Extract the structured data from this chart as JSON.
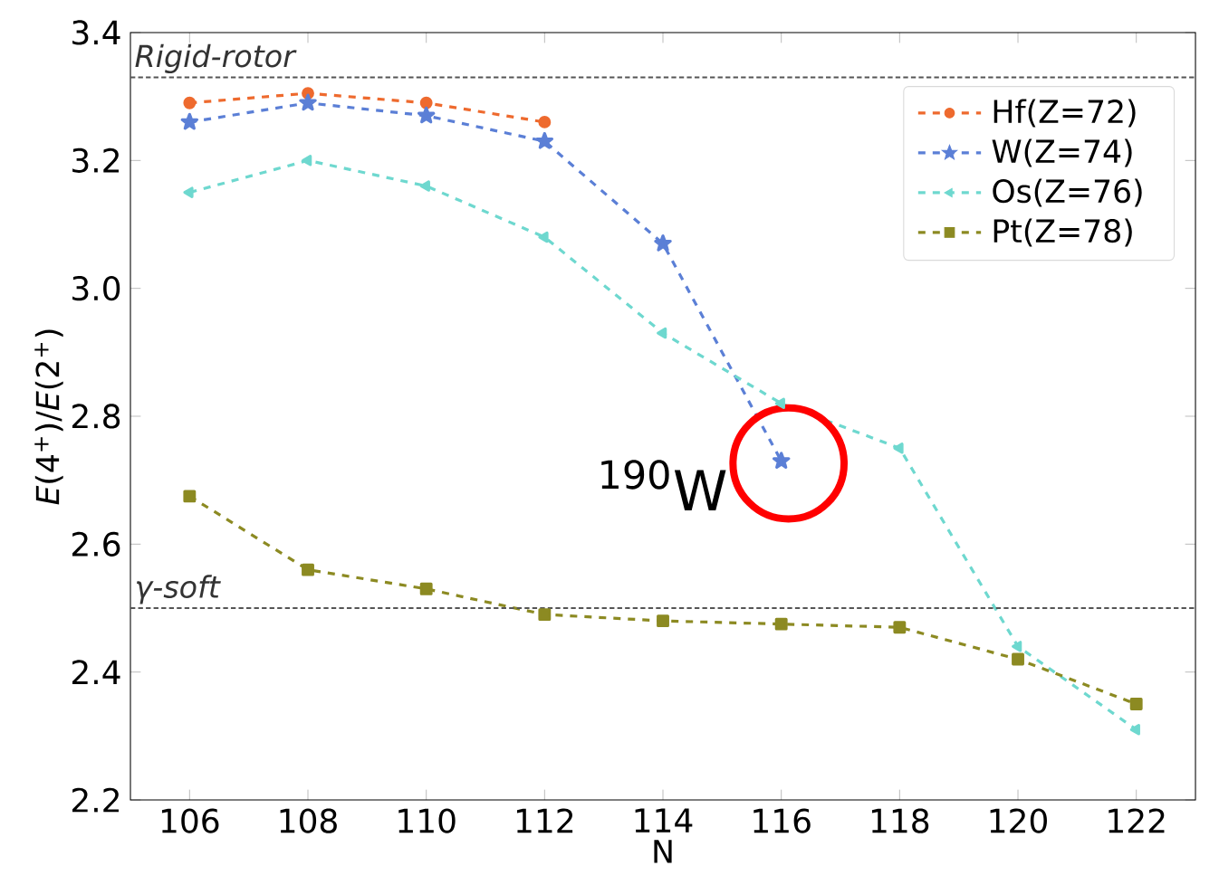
{
  "chart_data": {
    "type": "line",
    "xlabel": "N",
    "ylabel": "*E*(4$^{+}$)/*E*(2$^{+}$)",
    "x": [
      106,
      108,
      110,
      112,
      114,
      116,
      118,
      120,
      122
    ],
    "series": [
      {
        "name": "Hf(Z=72)",
        "color": "#ee6a2e",
        "marker": "circle",
        "values": [
          3.29,
          3.305,
          3.29,
          3.26,
          null,
          null,
          null,
          null,
          null
        ]
      },
      {
        "name": "W(Z=74)",
        "color": "#5b7fd6",
        "marker": "star",
        "values": [
          3.26,
          3.29,
          3.27,
          3.23,
          3.07,
          2.73,
          null,
          null,
          null
        ]
      },
      {
        "name": "Os(Z=76)",
        "color": "#6ed8cf",
        "marker": "triangle",
        "values": [
          3.15,
          3.2,
          3.16,
          3.08,
          2.93,
          2.82,
          2.75,
          2.44,
          2.31
        ]
      },
      {
        "name": "Pt(Z=78)",
        "color": "#8c8a22",
        "marker": "square",
        "values": [
          2.675,
          2.56,
          2.53,
          2.49,
          2.48,
          2.475,
          2.47,
          2.42,
          2.35
        ]
      }
    ],
    "line_style": "dashed",
    "xlim": [
      105,
      123
    ],
    "xticks": [
      106,
      108,
      110,
      112,
      114,
      116,
      118,
      120,
      122
    ],
    "ylim": [
      2.2,
      3.4
    ],
    "yticks": [
      {
        "value": 2.2,
        "label": "2.2"
      },
      {
        "value": 2.4,
        "label": "2.4"
      },
      {
        "value": 2.6,
        "label": "2.6"
      },
      {
        "value": 2.8,
        "label": "2.8"
      },
      {
        "value": 3.0,
        "label": "3.0"
      },
      {
        "value": 3.2,
        "label": "3.2"
      },
      {
        "value": 3.4,
        "label": "3.4"
      }
    ],
    "ref_lines": [
      {
        "axis": "y",
        "value": 3.33,
        "label": "Rigid-rotor",
        "color": "#555555",
        "line_style": "dashed"
      },
      {
        "axis": "y",
        "value": 2.5,
        "label": "γ-soft",
        "color": "#555555",
        "line_style": "dashed"
      }
    ],
    "annotations": [
      {
        "text": "$^{190}$W",
        "x": 116,
        "y": 2.73
      }
    ],
    "legend": "top right",
    "grid": false
  }
}
